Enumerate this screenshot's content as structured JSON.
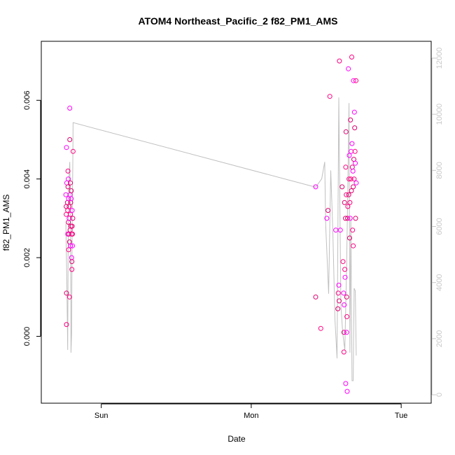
{
  "chart_data": {
    "type": "scatter",
    "title": "ATOM4 Northeast_Pacific_2 f82_PM1_AMS",
    "xlabel": "Date",
    "ylabel": "f82_PM1_AMS",
    "x_ticks": [
      "Sun",
      "Mon",
      "Tue"
    ],
    "y_ticks": [
      "0.000",
      "0.002",
      "0.004",
      "0.006"
    ],
    "y2_ticks": [
      "0",
      "2000",
      "4000",
      "6000",
      "8000",
      "10000",
      "12000"
    ],
    "xlim": [
      -0.2,
      1.1
    ],
    "ylim": [
      -0.0017,
      0.0075
    ],
    "y2lim": [
      -300,
      12600
    ],
    "grid": false,
    "colors": {
      "points": [
        "#ff00ff",
        "#dd006e",
        "#ff0080"
      ],
      "line": "#c0c0c0",
      "right_axis": "#c8c8c8"
    },
    "series": [
      {
        "kind": "points",
        "x_unit": "days since Sun",
        "values": [
          [
            -0.118,
            0.0036
          ],
          [
            -0.117,
            0.0033
          ],
          [
            -0.117,
            0.0031
          ],
          [
            -0.116,
            0.0048
          ],
          [
            -0.116,
            0.0011
          ],
          [
            -0.116,
            0.0003
          ],
          [
            -0.115,
            0.0039
          ],
          [
            -0.113,
            0.0034
          ],
          [
            -0.112,
            0.0032
          ],
          [
            -0.112,
            0.0026
          ],
          [
            -0.111,
            0.0038
          ],
          [
            -0.111,
            0.0042
          ],
          [
            -0.11,
            0.004
          ],
          [
            -0.11,
            0.0029
          ],
          [
            -0.109,
            0.0022
          ],
          [
            -0.109,
            0.0035
          ],
          [
            -0.108,
            0.0026
          ],
          [
            -0.107,
            0.0033
          ],
          [
            -0.107,
            0.003
          ],
          [
            -0.106,
            0.0024
          ],
          [
            -0.106,
            0.001
          ],
          [
            -0.105,
            0.0058
          ],
          [
            -0.105,
            0.005
          ],
          [
            -0.104,
            0.0027
          ],
          [
            -0.104,
            0.0036
          ],
          [
            -0.103,
            0.0039
          ],
          [
            -0.103,
            0.0031
          ],
          [
            -0.102,
            0.0023
          ],
          [
            -0.102,
            0.0034
          ],
          [
            -0.101,
            0.0028
          ],
          [
            -0.1,
            0.0035
          ],
          [
            -0.1,
            0.0037
          ],
          [
            -0.099,
            0.0026
          ],
          [
            -0.099,
            0.002
          ],
          [
            -0.098,
            0.0019
          ],
          [
            -0.098,
            0.0017
          ],
          [
            -0.097,
            0.0032
          ],
          [
            -0.097,
            0.0028
          ],
          [
            -0.096,
            0.0026
          ],
          [
            -0.096,
            0.0023
          ],
          [
            -0.095,
            0.003
          ],
          [
            -0.094,
            0.0047
          ],
          [
            0.715,
            0.0038
          ],
          [
            0.715,
            0.001
          ],
          [
            0.732,
            0.0002
          ],
          [
            0.752,
            0.003
          ],
          [
            0.756,
            0.0032
          ],
          [
            0.762,
            0.0061
          ],
          [
            0.782,
            0.0027
          ],
          [
            0.789,
            0.0007
          ],
          [
            0.79,
            0.0011
          ],
          [
            0.792,
            0.0013
          ],
          [
            0.793,
            0.0009
          ],
          [
            0.794,
            0.007
          ],
          [
            0.797,
            0.0027
          ],
          [
            0.803,
            0.0038
          ],
          [
            0.806,
            0.0019
          ],
          [
            0.808,
            0.0011
          ],
          [
            0.809,
            0.0001
          ],
          [
            0.809,
            -0.0004
          ],
          [
            0.81,
            0.0008
          ],
          [
            0.811,
            0.0034
          ],
          [
            0.812,
            0.0017
          ],
          [
            0.813,
            0.0015
          ],
          [
            0.814,
            0.003
          ],
          [
            0.815,
            0.0043
          ],
          [
            0.815,
            -0.0012
          ],
          [
            0.816,
            0.0052
          ],
          [
            0.817,
            0.0036
          ],
          [
            0.818,
            0.0001
          ],
          [
            0.818,
            0.001
          ],
          [
            0.819,
            0.0005
          ],
          [
            0.82,
            -0.0014
          ],
          [
            0.821,
            0.003
          ],
          [
            0.822,
            0.0033
          ],
          [
            0.824,
            0.0068
          ],
          [
            0.825,
            0.0036
          ],
          [
            0.826,
            0.004
          ],
          [
            0.827,
            0.0046
          ],
          [
            0.828,
            0.0025
          ],
          [
            0.829,
            0.0034
          ],
          [
            0.83,
            0.003
          ],
          [
            0.831,
            0.0055
          ],
          [
            0.832,
            0.004
          ],
          [
            0.833,
            0.0047
          ],
          [
            0.834,
            0.0037
          ],
          [
            0.835,
            0.0071
          ],
          [
            0.836,
            0.0049
          ],
          [
            0.837,
            0.0043
          ],
          [
            0.838,
            0.0027
          ],
          [
            0.839,
            0.0042
          ],
          [
            0.84,
            0.0038
          ],
          [
            0.84,
            0.0023
          ],
          [
            0.841,
            0.0065
          ],
          [
            0.842,
            0.0045
          ],
          [
            0.843,
            0.004
          ],
          [
            0.844,
            0.0057
          ],
          [
            0.845,
            0.0053
          ],
          [
            0.846,
            0.0047
          ],
          [
            0.847,
            0.0044
          ],
          [
            0.848,
            0.003
          ],
          [
            0.849,
            0.0065
          ],
          [
            0.85,
            0.0039
          ]
        ]
      },
      {
        "kind": "line",
        "axis": "right",
        "x_unit": "days since Sun",
        "values": [
          [
            -0.118,
            6100
          ],
          [
            -0.115,
            4200
          ],
          [
            -0.112,
            1600
          ],
          [
            -0.11,
            6500
          ],
          [
            -0.107,
            7900
          ],
          [
            -0.105,
            8300
          ],
          [
            -0.103,
            6600
          ],
          [
            -0.101,
            1500
          ],
          [
            -0.099,
            2200
          ],
          [
            -0.097,
            6200
          ],
          [
            -0.095,
            8200
          ],
          [
            -0.094,
            9700
          ],
          [
            0.715,
            7400
          ],
          [
            0.735,
            7700
          ],
          [
            0.745,
            8300
          ],
          [
            0.748,
            6100
          ],
          [
            0.758,
            3600
          ],
          [
            0.765,
            8000
          ],
          [
            0.772,
            5800
          ],
          [
            0.779,
            2700
          ],
          [
            0.786,
            1300
          ],
          [
            0.792,
            10600
          ],
          [
            0.799,
            3200
          ],
          [
            0.805,
            2200
          ],
          [
            0.812,
            1600
          ],
          [
            0.818,
            4600
          ],
          [
            0.823,
            8100
          ],
          [
            0.826,
            10400
          ],
          [
            0.829,
            1500
          ],
          [
            0.832,
            6300
          ],
          [
            0.836,
            500
          ],
          [
            0.84,
            500
          ],
          [
            0.843,
            3800
          ],
          [
            0.847,
            3700
          ],
          [
            0.85,
            1400
          ]
        ]
      }
    ]
  }
}
